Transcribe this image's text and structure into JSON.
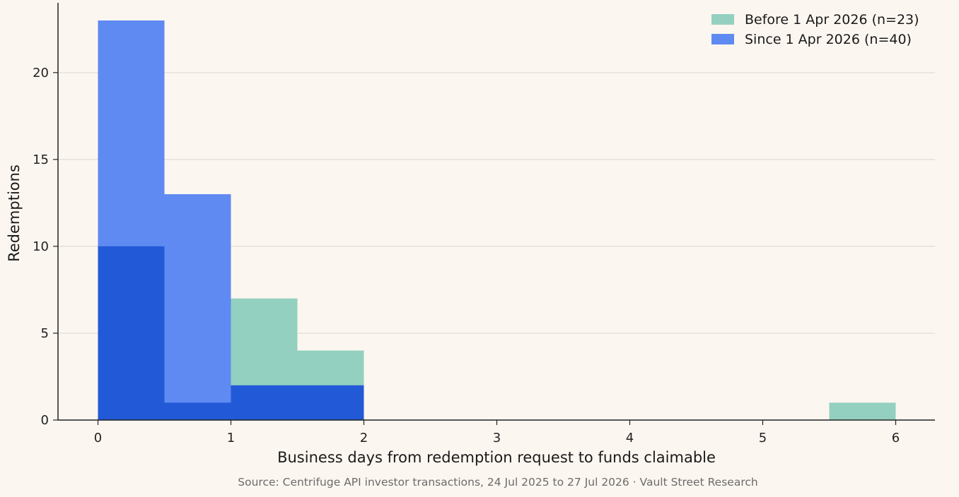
{
  "chart_data": {
    "type": "bar",
    "chart_subtype": "overlaid histogram",
    "bin_edges": [
      0,
      0.5,
      1,
      1.5,
      2,
      2.5,
      3,
      3.5,
      4,
      4.5,
      5,
      5.5,
      6
    ],
    "series": [
      {
        "name": "Before 1 Apr 2026 (n=23)",
        "color": "#93d0bf",
        "values": [
          10,
          1,
          7,
          4,
          0,
          0,
          0,
          0,
          0,
          0,
          0,
          1
        ]
      },
      {
        "name": "Since 1 Apr 2026 (n=40)",
        "color": "#5e8af2",
        "values": [
          23,
          13,
          2,
          2,
          0,
          0,
          0,
          0,
          0,
          0,
          0,
          0
        ]
      }
    ],
    "overlap_color": "#2259d6",
    "xlabel": "Business days from redemption request to funds claimable",
    "ylabel": "Redemptions",
    "xlim": [
      -0.3,
      6.3
    ],
    "ylim": [
      0,
      24
    ],
    "xticks": [
      0,
      1,
      2,
      3,
      4,
      5,
      6
    ],
    "yticks": [
      0,
      5,
      10,
      15,
      20
    ],
    "grid": "horizontal",
    "legend_position": "top-right",
    "source": "Source: Centrifuge API investor transactions, 24 Jul 2025 to 27 Jul 2026 · Vault Street Research"
  }
}
